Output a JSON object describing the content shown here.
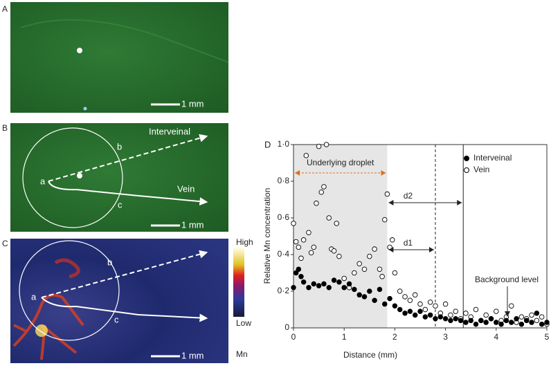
{
  "panels": [
    {
      "label": "A",
      "scale": "1 mm"
    },
    {
      "label": "B",
      "scale": "1 mm",
      "points": [
        "a",
        "b",
        "c"
      ],
      "arrows": [
        "Interveinal",
        "Vein"
      ]
    },
    {
      "label": "C",
      "scale": "1 mm",
      "points": [
        "a",
        "b",
        "c"
      ],
      "colorbar": {
        "high": "High",
        "low": "Low",
        "unit": "Mn"
      }
    }
  ],
  "chart_data": {
    "type": "scatter",
    "panel_label": "D",
    "xlabel": "Distance (mm)",
    "ylabel": "Relative Mn concentration",
    "xlim": [
      0,
      5
    ],
    "ylim": [
      0,
      1.0
    ],
    "xticks": [
      0,
      1,
      2,
      3,
      4,
      5
    ],
    "yticks": [
      0,
      {
        "value": 0.2,
        "label": "0·2"
      },
      {
        "value": 0.4,
        "label": "0·4"
      },
      {
        "value": 0.6,
        "label": "0·6"
      },
      {
        "value": 0.8,
        "label": "0·8"
      },
      {
        "value": 1.0,
        "label": "1·0"
      }
    ],
    "shaded_region": [
      0,
      1.85
    ],
    "vlines": [
      {
        "x": 2.8,
        "style": "dashed"
      },
      {
        "x": 3.35,
        "style": "solid"
      }
    ],
    "annotations": {
      "droplet": "Underlying droplet",
      "d1": "d1",
      "d2": "d2",
      "background": "Background level"
    },
    "series": [
      {
        "name": "Interveinal",
        "color": "#000000",
        "filled": true,
        "x": [
          0.0,
          0.05,
          0.1,
          0.15,
          0.2,
          0.3,
          0.4,
          0.5,
          0.6,
          0.7,
          0.8,
          0.9,
          1.0,
          1.1,
          1.2,
          1.3,
          1.4,
          1.5,
          1.6,
          1.7,
          1.8,
          1.9,
          2.0,
          2.1,
          2.2,
          2.3,
          2.4,
          2.5,
          2.6,
          2.7,
          2.8,
          2.9,
          3.0,
          3.1,
          3.2,
          3.3,
          3.4,
          3.5,
          3.6,
          3.7,
          3.8,
          3.9,
          4.0,
          4.1,
          4.2,
          4.3,
          4.4,
          4.5,
          4.6,
          4.7,
          4.8,
          4.9,
          5.0
        ],
        "values": [
          0.22,
          0.3,
          0.32,
          0.28,
          0.25,
          0.22,
          0.24,
          0.23,
          0.24,
          0.22,
          0.26,
          0.25,
          0.22,
          0.24,
          0.21,
          0.18,
          0.17,
          0.2,
          0.15,
          0.21,
          0.13,
          0.16,
          0.12,
          0.1,
          0.08,
          0.09,
          0.07,
          0.09,
          0.06,
          0.07,
          0.05,
          0.06,
          0.05,
          0.04,
          0.05,
          0.04,
          0.03,
          0.04,
          0.02,
          0.04,
          0.03,
          0.05,
          0.03,
          0.02,
          0.04,
          0.03,
          0.05,
          0.02,
          0.04,
          0.03,
          0.08,
          0.02,
          0.03
        ]
      },
      {
        "name": "Vein",
        "color": "#000000",
        "filled": false,
        "x": [
          0.0,
          0.05,
          0.1,
          0.15,
          0.2,
          0.25,
          0.3,
          0.35,
          0.4,
          0.45,
          0.5,
          0.55,
          0.6,
          0.65,
          0.7,
          0.75,
          0.8,
          0.85,
          0.9,
          1.0,
          1.1,
          1.2,
          1.3,
          1.4,
          1.5,
          1.6,
          1.7,
          1.75,
          1.8,
          1.85,
          1.9,
          1.95,
          2.0,
          2.1,
          2.2,
          2.3,
          2.4,
          2.5,
          2.6,
          2.7,
          2.8,
          2.9,
          3.0,
          3.1,
          3.2,
          3.3,
          3.4,
          3.5,
          3.6,
          3.7,
          3.8,
          3.9,
          4.0,
          4.1,
          4.2,
          4.3,
          4.4,
          4.5,
          4.6,
          4.7,
          4.8,
          4.9,
          5.0
        ],
        "values": [
          0.57,
          0.47,
          0.44,
          0.38,
          0.48,
          0.94,
          0.52,
          0.41,
          0.44,
          0.68,
          0.99,
          0.74,
          0.77,
          1.0,
          0.6,
          0.43,
          0.42,
          0.57,
          0.39,
          0.27,
          0.22,
          0.3,
          0.35,
          0.32,
          0.39,
          0.43,
          0.32,
          0.28,
          0.59,
          0.73,
          0.44,
          0.48,
          0.3,
          0.2,
          0.17,
          0.15,
          0.18,
          0.13,
          0.1,
          0.14,
          0.12,
          0.08,
          0.13,
          0.07,
          0.09,
          0.05,
          0.08,
          0.06,
          0.1,
          0.04,
          0.07,
          0.05,
          0.09,
          0.04,
          0.06,
          0.12,
          0.03,
          0.06,
          0.05,
          0.07,
          0.04,
          0.06,
          0.02
        ]
      }
    ]
  }
}
